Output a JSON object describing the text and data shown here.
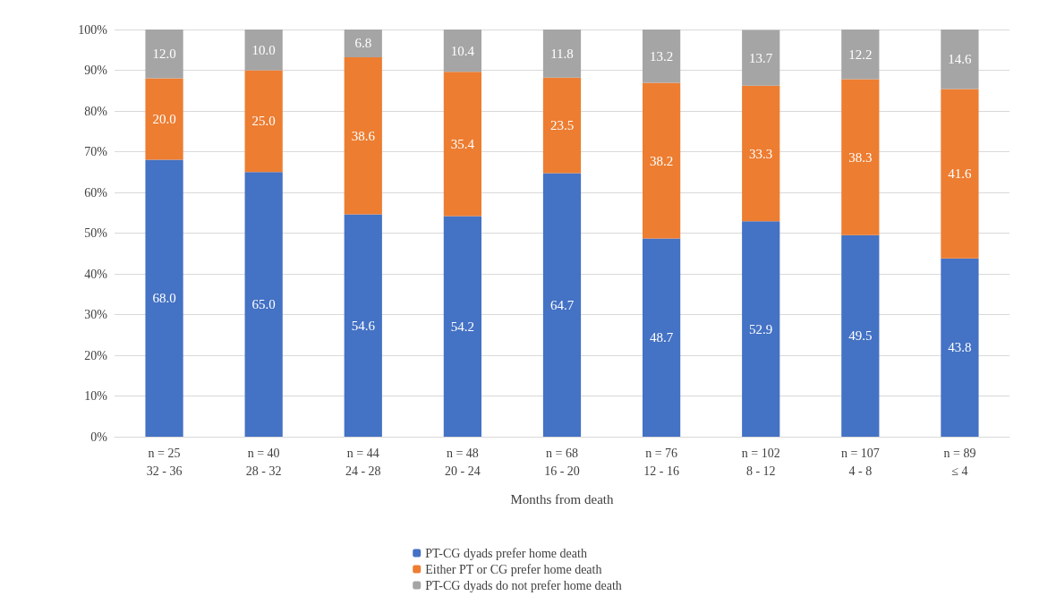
{
  "chart_data": {
    "type": "bar",
    "stacked": true,
    "xlabel": "Months from death",
    "categories": [
      "n = 25\n32 - 36",
      "n = 40\n28 - 32",
      "n = 44\n24 - 28",
      "n = 48\n20 - 24",
      "n = 68\n16 - 20",
      "n = 76\n12 - 16",
      "n = 102\n8 - 12",
      "n = 107\n4 - 8",
      "n = 89\n≤ 4"
    ],
    "series": [
      {
        "name": "PT-CG dyads prefer home death",
        "color": "#4472c4",
        "values": [
          68.0,
          65.0,
          54.6,
          54.2,
          64.7,
          48.7,
          52.9,
          49.5,
          43.8
        ],
        "value_labels": [
          "68.0",
          "65.0",
          "54.6",
          "54.2",
          "64.7",
          "48.7",
          "52.9",
          "49.5",
          "43.8"
        ]
      },
      {
        "name": "Either PT or CG prefer home death",
        "color": "#ed7d31",
        "values": [
          20.0,
          25.0,
          38.6,
          35.4,
          23.5,
          38.2,
          33.3,
          38.3,
          41.6
        ],
        "value_labels": [
          "20.0",
          "25.0",
          "38.6",
          "35.4",
          "23.5",
          "38.2",
          "33.3",
          "38.3",
          "41.6"
        ]
      },
      {
        "name": "PT-CG dyads do not prefer home death",
        "color": "#a5a5a5",
        "values": [
          12.0,
          10.0,
          6.8,
          10.4,
          11.8,
          13.2,
          13.7,
          12.2,
          14.6
        ],
        "value_labels": [
          "12.0",
          "10.0",
          "6.8",
          "10.4",
          "11.8",
          "13.2",
          "13.7",
          "12.2",
          "14.6"
        ]
      }
    ],
    "ylim": [
      0,
      100
    ],
    "yticks": [
      {
        "value": 0,
        "label": "0%"
      },
      {
        "value": 10,
        "label": "10%"
      },
      {
        "value": 20,
        "label": "20%"
      },
      {
        "value": 30,
        "label": "30%"
      },
      {
        "value": 40,
        "label": "40%"
      },
      {
        "value": 50,
        "label": "50%"
      },
      {
        "value": 60,
        "label": "60%"
      },
      {
        "value": 70,
        "label": "70%"
      },
      {
        "value": 80,
        "label": "80%"
      },
      {
        "value": 90,
        "label": "90%"
      },
      {
        "value": 100,
        "label": "100%"
      }
    ],
    "grid": "y",
    "legend": "bottom"
  }
}
